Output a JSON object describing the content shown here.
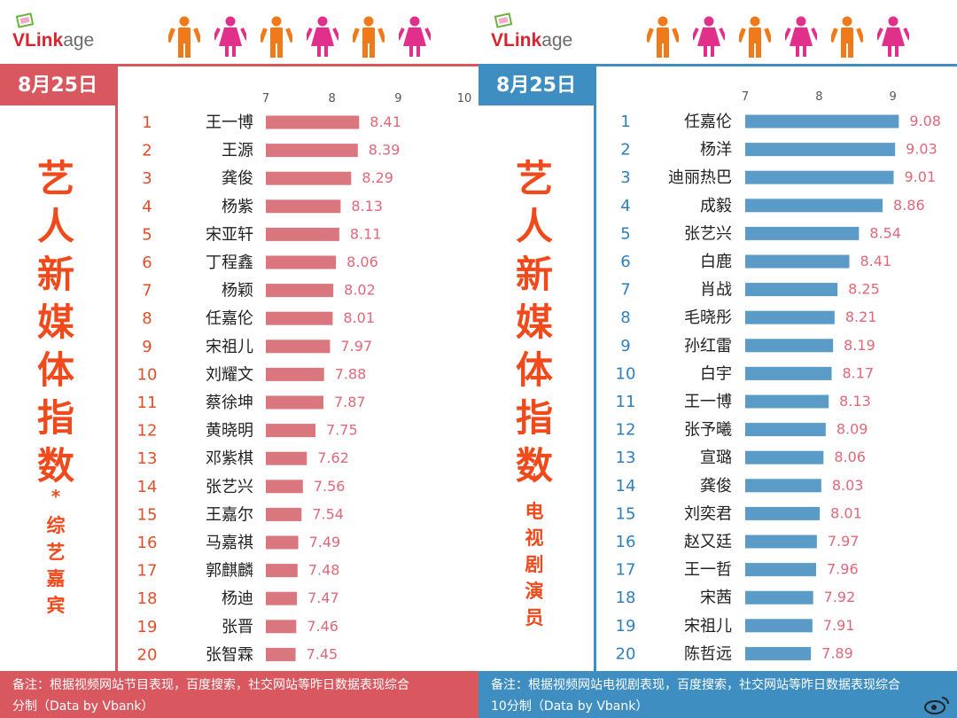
{
  "colors": {
    "left_accent": "#d9585f",
    "left_bar": "#d9767e",
    "left_title": "#f04a1c",
    "right_accent": "#3f8ec1",
    "right_bar": "#5b9bc8",
    "right_title": "#f04a1c",
    "rank_left": "#e04f2a",
    "rank_right": "#2f7fbf",
    "value_label": "#e06878",
    "person_orange": "#f07a1a",
    "person_pink": "#e0308c"
  },
  "brand": {
    "logo_v": "VLink",
    "logo_age": "age",
    "logo_icon": "screen-icon"
  },
  "left_panel": {
    "date": "8月25日",
    "title_chars": [
      "艺",
      "人",
      "新",
      "媒",
      "体",
      "指",
      "数"
    ],
    "star": "*",
    "subtitle_chars": [
      "综",
      "艺",
      "嘉",
      "宾"
    ],
    "footer_line1": "备注：根据视频网站节目表现，百度搜索，社交网站等昨日数据表现综合",
    "footer_line2": "分制（Data by Vbank）"
  },
  "right_panel": {
    "date": "8月25日",
    "title_chars": [
      "艺",
      "人",
      "新",
      "媒",
      "体",
      "指",
      "数"
    ],
    "star": "*",
    "subtitle_chars": [
      "电",
      "视",
      "剧",
      "演",
      "员"
    ],
    "footer_line1": "备注：根据视频网站电视剧表现，百度搜索，社交网站等昨日数据表现综合",
    "footer_line2": "10分制（Data by Vbank）"
  },
  "chart_data": [
    {
      "type": "bar",
      "orientation": "horizontal",
      "title": "艺人新媒体指数 * 综艺嘉宾",
      "xlim": [
        7,
        10
      ],
      "xticks": [
        "7",
        "8",
        "9",
        "10"
      ],
      "ranks": [
        "1",
        "2",
        "3",
        "4",
        "5",
        "6",
        "7",
        "8",
        "9",
        "10",
        "11",
        "12",
        "13",
        "14",
        "15",
        "16",
        "17",
        "18",
        "19",
        "20"
      ],
      "categories": [
        "王一博",
        "王源",
        "龚俊",
        "杨紫",
        "宋亚轩",
        "丁程鑫",
        "杨颖",
        "任嘉伦",
        "宋祖儿",
        "刘耀文",
        "蔡徐坤",
        "黄晓明",
        "邓紫棋",
        "张艺兴",
        "王嘉尔",
        "马嘉祺",
        "郭麒麟",
        "杨迪",
        "张晋",
        "张智霖"
      ],
      "values": [
        8.41,
        8.39,
        8.29,
        8.13,
        8.11,
        8.06,
        8.02,
        8.01,
        7.97,
        7.88,
        7.87,
        7.75,
        7.62,
        7.56,
        7.54,
        7.49,
        7.48,
        7.47,
        7.46,
        7.45
      ],
      "value_labels": [
        "8.41",
        "8.39",
        "8.29",
        "8.13",
        "8.11",
        "8.06",
        "8.02",
        "8.01",
        "7.97",
        "7.88",
        "7.87",
        "7.75",
        "7.62",
        "7.56",
        "7.54",
        "7.49",
        "7.48",
        "7.47",
        "7.46",
        "7.45"
      ]
    },
    {
      "type": "bar",
      "orientation": "horizontal",
      "title": "艺人新媒体指数 * 电视剧演员",
      "xlim": [
        7,
        10
      ],
      "xticks": [
        "7",
        "8",
        "9"
      ],
      "ranks": [
        "1",
        "2",
        "3",
        "4",
        "5",
        "6",
        "7",
        "8",
        "9",
        "10",
        "11",
        "12",
        "13",
        "14",
        "15",
        "16",
        "17",
        "18",
        "19",
        "20"
      ],
      "categories": [
        "任嘉伦",
        "杨洋",
        "迪丽热巴",
        "成毅",
        "张艺兴",
        "白鹿",
        "肖战",
        "毛晓彤",
        "孙红雷",
        "白宇",
        "王一博",
        "张予曦",
        "宣璐",
        "龚俊",
        "刘奕君",
        "赵又廷",
        "王一哲",
        "宋茜",
        "宋祖儿",
        "陈哲远"
      ],
      "values": [
        9.08,
        9.03,
        9.01,
        8.86,
        8.54,
        8.41,
        8.25,
        8.21,
        8.19,
        8.17,
        8.13,
        8.09,
        8.06,
        8.03,
        8.01,
        7.97,
        7.96,
        7.92,
        7.91,
        7.89
      ],
      "value_labels": [
        "9.08",
        "9.03",
        "9.01",
        "8.86",
        "8.54",
        "8.41",
        "8.25",
        "8.21",
        "8.19",
        "8.17",
        "8.13",
        "8.09",
        "8.06",
        "8.03",
        "8.01",
        "7.97",
        "7.96",
        "7.92",
        "7.91",
        "7.89"
      ]
    }
  ]
}
